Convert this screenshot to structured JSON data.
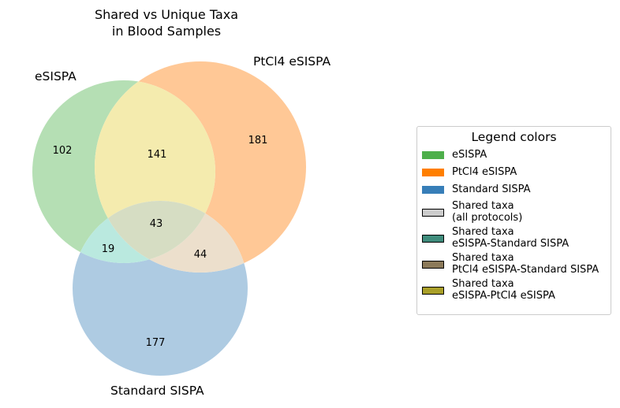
{
  "title": "Shared vs Unique Taxa\nin Blood Samples",
  "sets": [
    {
      "name": "eSISPA",
      "color": "#4daf4a"
    },
    {
      "name": "PtCl4 eSISPA",
      "color": "#ff7f00"
    },
    {
      "name": "Standard SISPA",
      "color": "#377eb8"
    }
  ],
  "regions": {
    "eSISPA_only": "102",
    "PtCl4_only": "181",
    "Standard_only": "177",
    "eSISPA_PtCl4": "141",
    "eSISPA_Standard": "19",
    "PtCl4_Standard": "44",
    "all": "43"
  },
  "region_colors": {
    "eSISPA_only": "#b5dfb4",
    "PtCl4_only": "#ffc896",
    "Standard_only": "#aecbe2",
    "eSISPA_PtCl4": "#f4ebae",
    "eSISPA_Standard": "#bae9df",
    "PtCl4_Standard": "#ecdfcc",
    "all": "#d6ddc3"
  },
  "legend": {
    "title": "Legend colors",
    "items": [
      {
        "label": "eSISPA",
        "color": "#4daf4a",
        "outlined": false
      },
      {
        "label": "PtCl4 eSISPA",
        "color": "#ff7f00",
        "outlined": false
      },
      {
        "label": "Standard SISPA",
        "color": "#377eb8",
        "outlined": false
      },
      {
        "label": "Shared taxa\n(all protocols)",
        "color": "#cccccc",
        "outlined": true
      },
      {
        "label": "Shared taxa\neSISPA-Standard SISPA",
        "color": "#3f8c7c",
        "outlined": true
      },
      {
        "label": "Shared taxa\nPtCl4 eSISPA-Standard SISPA",
        "color": "#8c7a5a",
        "outlined": true
      },
      {
        "label": "Shared taxa\neSISPA-PtCl4 eSISPA",
        "color": "#a99f28",
        "outlined": true
      }
    ]
  }
}
